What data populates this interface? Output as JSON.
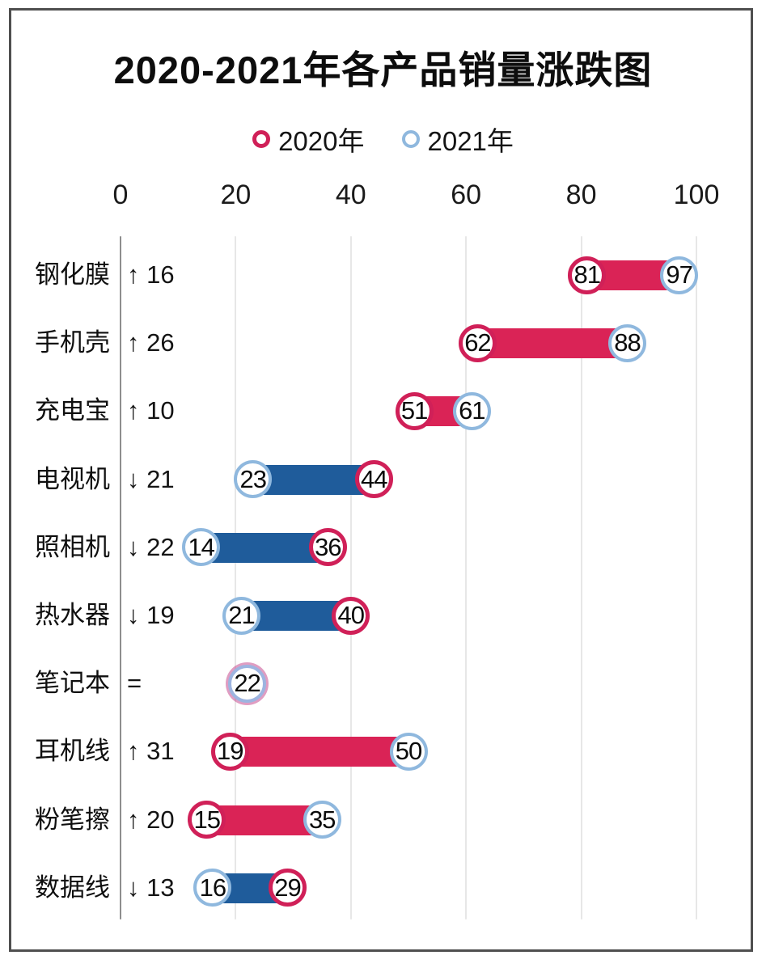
{
  "chart_data": {
    "type": "bar",
    "variant": "dumbbell-range",
    "title": "2020-2021年各产品销量涨跌图",
    "legend": [
      {
        "label": "2020年",
        "color": "#d02058"
      },
      {
        "label": "2021年",
        "color": "#8fb8de"
      }
    ],
    "x_axis": {
      "ticks": [
        0,
        20,
        40,
        60,
        80,
        100
      ],
      "range": [
        0,
        100
      ],
      "grid": true
    },
    "colors": {
      "up_bar": "#da2356",
      "down_bar": "#1f5c9b",
      "ring_2020": "#d02058",
      "ring_2021": "#8fb8de"
    },
    "categories": [
      "钢化膜",
      "手机壳",
      "充电宝",
      "电视机",
      "照相机",
      "热水器",
      "笔记本",
      "耳机线",
      "粉笔擦",
      "数据线"
    ],
    "series": [
      {
        "name": "2020年",
        "values": [
          81,
          62,
          51,
          44,
          36,
          40,
          22,
          19,
          15,
          29
        ]
      },
      {
        "name": "2021年",
        "values": [
          97,
          88,
          61,
          23,
          14,
          21,
          22,
          50,
          35,
          16
        ]
      }
    ],
    "rows": [
      {
        "category": "钢化膜",
        "change_label": "↑ 16",
        "direction": "up",
        "v2020": 81,
        "v2021": 97
      },
      {
        "category": "手机壳",
        "change_label": "↑ 26",
        "direction": "up",
        "v2020": 62,
        "v2021": 88
      },
      {
        "category": "充电宝",
        "change_label": "↑ 10",
        "direction": "up",
        "v2020": 51,
        "v2021": 61
      },
      {
        "category": "电视机",
        "change_label": "↓ 21",
        "direction": "down",
        "v2020": 44,
        "v2021": 23
      },
      {
        "category": "照相机",
        "change_label": "↓ 22",
        "direction": "down",
        "v2020": 36,
        "v2021": 14
      },
      {
        "category": "热水器",
        "change_label": "↓ 19",
        "direction": "down",
        "v2020": 40,
        "v2021": 21
      },
      {
        "category": "笔记本",
        "change_label": "=",
        "direction": "equal",
        "v2020": 22,
        "v2021": 22
      },
      {
        "category": "耳机线",
        "change_label": "↑ 31",
        "direction": "up",
        "v2020": 19,
        "v2021": 50
      },
      {
        "category": "粉笔擦",
        "change_label": "↑ 20",
        "direction": "up",
        "v2020": 15,
        "v2021": 35
      },
      {
        "category": "数据线",
        "change_label": "↓ 13",
        "direction": "down",
        "v2020": 29,
        "v2021": 16
      }
    ]
  }
}
